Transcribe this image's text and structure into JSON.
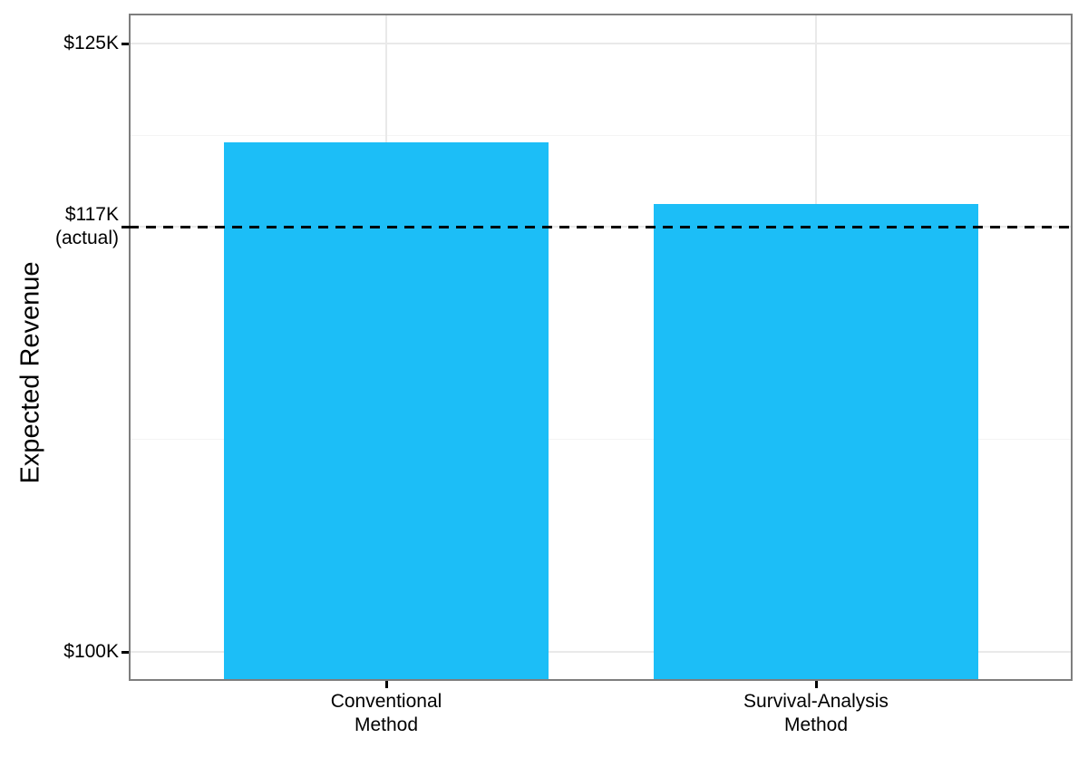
{
  "chart_data": {
    "type": "bar",
    "orientation": "vertical",
    "title": "",
    "xlabel": "",
    "ylabel": "Expected Revenue",
    "categories": [
      "Conventional\nMethod",
      "Survival-Analysis\nMethod"
    ],
    "values": [
      120.7,
      118.0
    ],
    "values_unit": "USD thousands",
    "yticks": [
      {
        "value": 100,
        "label": "$100K"
      },
      {
        "value": 117,
        "label": "$117K\n(actual)"
      },
      {
        "value": 125,
        "label": "$125K"
      }
    ],
    "reference_line": {
      "value": 117,
      "label": "$117K (actual)",
      "style": "dashed",
      "color": "#000000"
    },
    "ylim": [
      98.8,
      126.3
    ],
    "grid": true,
    "legend_position": "none",
    "bar_color": "#1CBEF7"
  }
}
